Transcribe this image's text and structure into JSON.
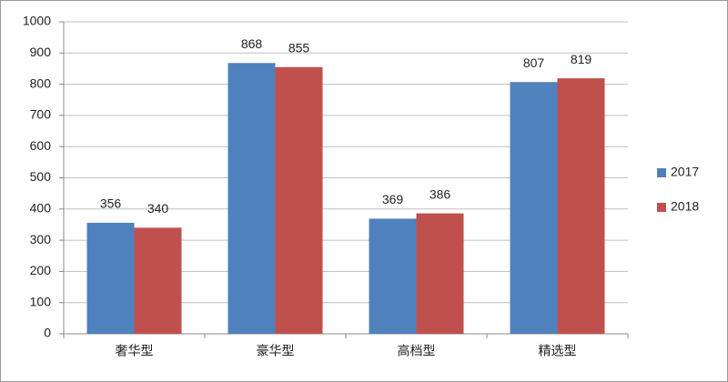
{
  "chart_data": {
    "type": "bar",
    "categories": [
      "奢华型",
      "豪华型",
      "高档型",
      "精选型"
    ],
    "series": [
      {
        "name": "2017",
        "color": "#4f81bd",
        "values": [
          356,
          868,
          369,
          807
        ]
      },
      {
        "name": "2018",
        "color": "#c0504d",
        "values": [
          340,
          855,
          386,
          819
        ]
      }
    ],
    "ylim": [
      0,
      1000
    ],
    "yticks": [
      0,
      100,
      200,
      300,
      400,
      500,
      600,
      700,
      800,
      900,
      1000
    ],
    "grid": true,
    "legend": "right",
    "data_labels": true
  }
}
